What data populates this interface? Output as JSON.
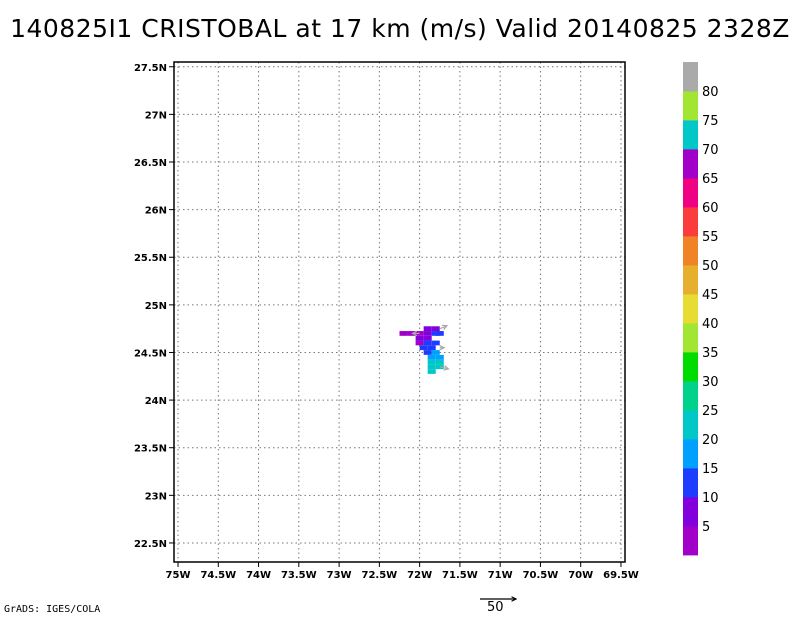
{
  "title": "140825I1 CRISTOBAL at 17 km (m/s) Valid 20140825 2328Z",
  "credit": "GrADS: IGES/COLA",
  "chart_data": {
    "type": "heatmap",
    "title": "140825I1 CRISTOBAL at 17 km (m/s) Valid 20140825 2328Z",
    "x_ticks": [
      "75W",
      "74.5W",
      "74W",
      "73.5W",
      "73W",
      "72.5W",
      "72W",
      "71.5W",
      "71W",
      "70.5W",
      "70W",
      "69.5W"
    ],
    "y_ticks": [
      "22.5N",
      "23N",
      "23.5N",
      "24N",
      "24.5N",
      "25N",
      "25.5N",
      "26N",
      "26.5N",
      "27N",
      "27.5N"
    ],
    "xlim": [
      -75.05,
      -69.45
    ],
    "ylim": [
      22.3,
      27.55
    ],
    "grid": true,
    "colorbar": {
      "colors": [
        "#a000c8",
        "#8200dc",
        "#1e3cff",
        "#00a0ff",
        "#00c8c8",
        "#00d28c",
        "#00dc00",
        "#a0e632",
        "#e6dc32",
        "#e6af2d",
        "#f08228",
        "#fa3c3c",
        "#f00082",
        "#a000c8",
        "#00c8c8",
        "#a0e632",
        "#aaaaaa"
      ],
      "labels": [
        "5",
        "10",
        "15",
        "20",
        "25",
        "30",
        "35",
        "40",
        "45",
        "50",
        "55",
        "60",
        "65",
        "70",
        "75",
        "80"
      ]
    },
    "cells": [
      {
        "lon": -72.2,
        "lat": 24.7,
        "value": 65
      },
      {
        "lon": -72.1,
        "lat": 24.7,
        "value": 65
      },
      {
        "lon": -72.0,
        "lat": 24.7,
        "value": 68
      },
      {
        "lon": -71.9,
        "lat": 24.7,
        "value": 8
      },
      {
        "lon": -71.8,
        "lat": 24.7,
        "value": 12
      },
      {
        "lon": -71.75,
        "lat": 24.7,
        "value": 12
      },
      {
        "lon": -71.9,
        "lat": 24.75,
        "value": 8
      },
      {
        "lon": -71.8,
        "lat": 24.75,
        "value": 8
      },
      {
        "lon": -72.0,
        "lat": 24.65,
        "value": 8
      },
      {
        "lon": -71.9,
        "lat": 24.65,
        "value": 8
      },
      {
        "lon": -72.0,
        "lat": 24.6,
        "value": 3
      },
      {
        "lon": -71.9,
        "lat": 24.6,
        "value": 12
      },
      {
        "lon": -71.8,
        "lat": 24.6,
        "value": 12
      },
      {
        "lon": -71.95,
        "lat": 24.55,
        "value": 12
      },
      {
        "lon": -71.85,
        "lat": 24.55,
        "value": 12
      },
      {
        "lon": -71.9,
        "lat": 24.5,
        "value": 12
      },
      {
        "lon": -71.8,
        "lat": 24.5,
        "value": 15
      },
      {
        "lon": -71.75,
        "lat": 24.45,
        "value": 17
      },
      {
        "lon": -71.85,
        "lat": 24.45,
        "value": 17
      },
      {
        "lon": -71.85,
        "lat": 24.4,
        "value": 20
      },
      {
        "lon": -71.75,
        "lat": 24.4,
        "value": 20
      },
      {
        "lon": -71.85,
        "lat": 24.35,
        "value": 22
      },
      {
        "lon": -71.75,
        "lat": 24.35,
        "value": 20
      },
      {
        "lon": -71.85,
        "lat": 24.3,
        "value": 22
      }
    ],
    "wind_vectors": [
      {
        "lon": -72.0,
        "lat": 24.7,
        "u": -10,
        "v": 0
      },
      {
        "lon": -71.75,
        "lat": 24.75,
        "u": 10,
        "v": 4
      },
      {
        "lon": -71.75,
        "lat": 24.55,
        "u": 6,
        "v": 0
      },
      {
        "lon": -71.75,
        "lat": 24.35,
        "u": 12,
        "v": -3
      }
    ],
    "vector_reference": {
      "label": "50",
      "value": 50
    }
  }
}
